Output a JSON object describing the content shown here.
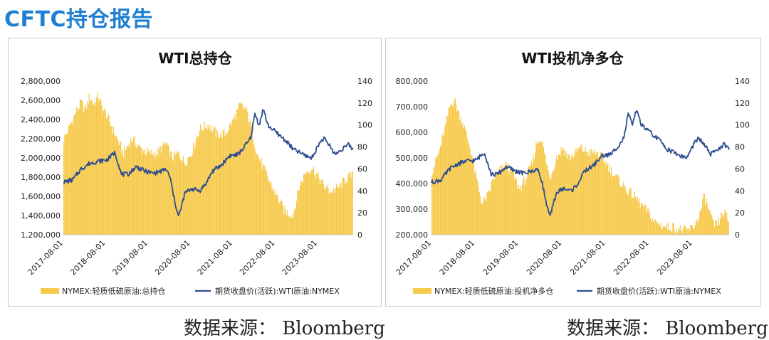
{
  "page": {
    "title": "CFTC持仓报告",
    "sources": [
      "数据来源： Bloomberg",
      "数据来源： Bloomberg"
    ]
  },
  "colors": {
    "bar": "#f6c94a",
    "line": "#2e4d8f",
    "title": "#1f7fd1"
  },
  "chart_data": [
    {
      "type": "bar",
      "title": "WTI总持仓",
      "x_tick_labels": [
        "2017-08-01",
        "2018-08-01",
        "2019-08-01",
        "2020-08-01",
        "2021-08-01",
        "2022-08-01",
        "2023-08-01"
      ],
      "x_range": [
        2017.58,
        2024.42
      ],
      "y_left_range": [
        1200000,
        2800000
      ],
      "y_left_ticks": [
        "1,200,000",
        "1,400,000",
        "1,600,000",
        "1,800,000",
        "2,000,000",
        "2,200,000",
        "2,400,000",
        "2,600,000",
        "2,800,000"
      ],
      "y_right_range": [
        0,
        140
      ],
      "y_right_ticks": [
        "0",
        "20",
        "40",
        "60",
        "80",
        "100",
        "120",
        "140"
      ],
      "series": [
        {
          "name": "NYMEX:轻质低硫原油:总持仓",
          "kind": "bar",
          "axis": "left",
          "x": [
            2017.6,
            2017.75,
            2017.9,
            2018.0,
            2018.1,
            2018.2,
            2018.3,
            2018.4,
            2018.5,
            2018.6,
            2018.7,
            2018.85,
            2019.0,
            2019.2,
            2019.4,
            2019.6,
            2019.8,
            2020.0,
            2020.15,
            2020.3,
            2020.45,
            2020.6,
            2020.8,
            2021.0,
            2021.2,
            2021.4,
            2021.6,
            2021.75,
            2021.9,
            2022.0,
            2022.15,
            2022.3,
            2022.45,
            2022.6,
            2022.8,
            2023.0,
            2023.15,
            2023.3,
            2023.45,
            2023.6,
            2023.75,
            2023.9,
            2024.1,
            2024.3,
            2024.42
          ],
          "values": [
            2200000,
            2350000,
            2500000,
            2580000,
            2500000,
            2640000,
            2560000,
            2650000,
            2520000,
            2450000,
            2350000,
            2200000,
            2050000,
            2200000,
            2100000,
            2050000,
            2050000,
            2150000,
            2000000,
            2050000,
            1950000,
            2050000,
            2300000,
            2350000,
            2250000,
            2250000,
            2400000,
            2550000,
            2500000,
            2350000,
            2050000,
            1900000,
            1750000,
            1620000,
            1450000,
            1400000,
            1700000,
            1850000,
            1900000,
            1800000,
            1700000,
            1650000,
            1700000,
            1800000,
            1820000
          ]
        },
        {
          "name": "期货收盘价(活跃):WTI原油:NYMEX",
          "kind": "line",
          "axis": "right",
          "x": [
            2017.6,
            2017.8,
            2018.0,
            2018.2,
            2018.4,
            2018.6,
            2018.8,
            2018.95,
            2019.1,
            2019.3,
            2019.5,
            2019.7,
            2019.9,
            2020.0,
            2020.1,
            2020.2,
            2020.3,
            2020.35,
            2020.45,
            2020.6,
            2020.8,
            2020.95,
            2021.1,
            2021.3,
            2021.5,
            2021.7,
            2021.85,
            2022.0,
            2022.1,
            2022.2,
            2022.3,
            2022.4,
            2022.55,
            2022.7,
            2022.85,
            2023.0,
            2023.15,
            2023.3,
            2023.45,
            2023.6,
            2023.72,
            2023.85,
            2024.0,
            2024.15,
            2024.3,
            2024.42
          ],
          "values": [
            48,
            50,
            60,
            65,
            67,
            68,
            75,
            55,
            55,
            62,
            58,
            56,
            58,
            60,
            52,
            32,
            16,
            23,
            38,
            42,
            40,
            47,
            58,
            63,
            72,
            73,
            80,
            88,
            110,
            100,
            115,
            100,
            95,
            90,
            85,
            78,
            75,
            72,
            70,
            82,
            88,
            82,
            73,
            78,
            82,
            78
          ]
        }
      ]
    },
    {
      "type": "bar",
      "title": "WTI投机净多仓",
      "x_tick_labels": [
        "2017-08-01",
        "2018-08-01",
        "2019-08-01",
        "2020-08-01",
        "2021-08-01",
        "2022-08-01",
        "2023-08-01"
      ],
      "x_range": [
        2017.58,
        2024.42
      ],
      "y_left_range": [
        200000,
        800000
      ],
      "y_left_ticks": [
        "200,000",
        "300,000",
        "400,000",
        "500,000",
        "600,000",
        "700,000",
        "800,000"
      ],
      "y_right_range": [
        0,
        140
      ],
      "y_right_ticks": [
        "0",
        "20",
        "40",
        "60",
        "80",
        "100",
        "120",
        "140"
      ],
      "series": [
        {
          "name": "NYMEX:轻质低硫原油:投机净多仓",
          "kind": "bar",
          "axis": "left",
          "x": [
            2017.6,
            2017.75,
            2017.9,
            2018.0,
            2018.1,
            2018.2,
            2018.3,
            2018.4,
            2018.5,
            2018.6,
            2018.75,
            2018.9,
            2019.0,
            2019.15,
            2019.3,
            2019.45,
            2019.6,
            2019.75,
            2019.9,
            2020.0,
            2020.1,
            2020.2,
            2020.3,
            2020.45,
            2020.6,
            2020.75,
            2020.9,
            2021.0,
            2021.2,
            2021.4,
            2021.6,
            2021.8,
            2021.95,
            2022.1,
            2022.25,
            2022.4,
            2022.55,
            2022.7,
            2022.85,
            2023.0,
            2023.15,
            2023.3,
            2023.45,
            2023.6,
            2023.75,
            2023.85,
            2023.95,
            2024.05,
            2024.15,
            2024.3,
            2024.42
          ],
          "values": [
            450000,
            520000,
            620000,
            700000,
            730000,
            680000,
            640000,
            580000,
            520000,
            430000,
            320000,
            360000,
            420000,
            450000,
            470000,
            440000,
            380000,
            420000,
            480000,
            560000,
            580000,
            500000,
            420000,
            500000,
            540000,
            500000,
            520000,
            540000,
            520000,
            520000,
            480000,
            430000,
            400000,
            370000,
            350000,
            320000,
            290000,
            250000,
            240000,
            230000,
            230000,
            220000,
            215000,
            230000,
            280000,
            350000,
            300000,
            240000,
            240000,
            290000,
            250000
          ]
        },
        {
          "name": "期货收盘价(活跃):WTI原油:NYMEX",
          "kind": "line",
          "axis": "right",
          "x": [
            2017.6,
            2017.8,
            2018.0,
            2018.2,
            2018.4,
            2018.6,
            2018.8,
            2018.95,
            2019.1,
            2019.3,
            2019.5,
            2019.7,
            2019.9,
            2020.0,
            2020.1,
            2020.2,
            2020.3,
            2020.35,
            2020.45,
            2020.6,
            2020.8,
            2020.95,
            2021.1,
            2021.3,
            2021.5,
            2021.7,
            2021.85,
            2022.0,
            2022.1,
            2022.2,
            2022.3,
            2022.4,
            2022.55,
            2022.7,
            2022.85,
            2023.0,
            2023.15,
            2023.3,
            2023.45,
            2023.6,
            2023.72,
            2023.85,
            2024.0,
            2024.15,
            2024.3,
            2024.42
          ],
          "values": [
            48,
            50,
            60,
            65,
            67,
            68,
            75,
            55,
            55,
            62,
            58,
            56,
            58,
            60,
            52,
            32,
            16,
            23,
            38,
            42,
            40,
            47,
            58,
            63,
            72,
            73,
            80,
            88,
            110,
            100,
            115,
            100,
            95,
            90,
            85,
            78,
            75,
            72,
            70,
            82,
            88,
            82,
            73,
            78,
            82,
            78
          ]
        }
      ]
    }
  ]
}
